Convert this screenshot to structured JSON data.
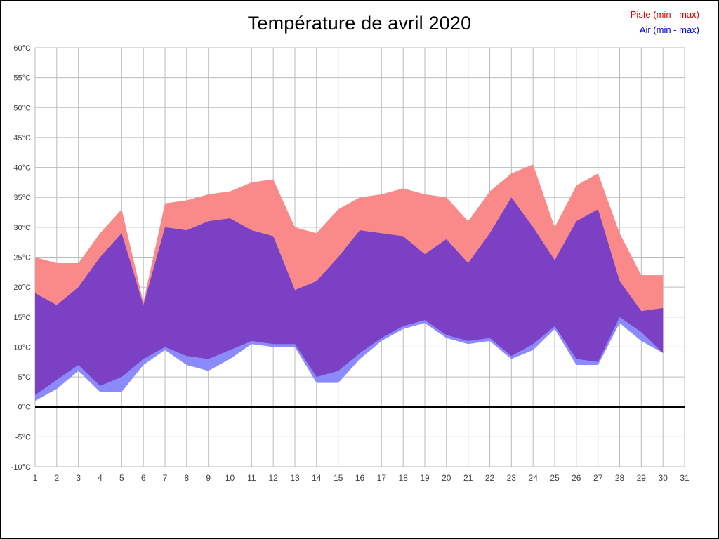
{
  "title": "Température de avril 2020",
  "legend": [
    {
      "label": "Piste (min - max)",
      "color": "#dd0000"
    },
    {
      "label": "Air (min - max)",
      "color": "#0000cc"
    }
  ],
  "chart_data": {
    "type": "area",
    "subtype": "min-max-range-bands",
    "title": "Température de avril 2020",
    "x": [
      1,
      2,
      3,
      4,
      5,
      6,
      7,
      8,
      9,
      10,
      11,
      12,
      13,
      14,
      15,
      16,
      17,
      18,
      19,
      20,
      21,
      22,
      23,
      24,
      25,
      26,
      27,
      28,
      29,
      30
    ],
    "x_ticks": [
      1,
      2,
      3,
      4,
      5,
      6,
      7,
      8,
      9,
      10,
      11,
      12,
      13,
      14,
      15,
      16,
      17,
      18,
      19,
      20,
      21,
      22,
      23,
      24,
      25,
      26,
      27,
      28,
      29,
      30,
      31
    ],
    "ylim": [
      -10,
      60
    ],
    "y_tick_step": 5,
    "y_tick_suffix": "°C",
    "grid": true,
    "zero_line": true,
    "legend_position": "top-right",
    "series": [
      {
        "name": "Piste max",
        "role": "piste_max",
        "color": "#fa8a8a",
        "values": [
          25,
          24,
          24,
          29,
          33,
          17.5,
          34,
          34.5,
          35.5,
          36,
          37.5,
          38,
          30,
          29,
          33,
          35,
          35.5,
          36.5,
          35.5,
          35,
          31,
          36,
          39,
          40.5,
          30,
          37,
          39,
          29,
          22,
          22
        ]
      },
      {
        "name": "Piste min",
        "role": "piste_min",
        "color": "#fa8a8a",
        "values": [
          2,
          4.5,
          7,
          3.5,
          5,
          8,
          10,
          8.5,
          8,
          9.5,
          11,
          10.5,
          10.5,
          5,
          6,
          9,
          11.5,
          13.5,
          14.5,
          12,
          11,
          11.5,
          8.5,
          10.5,
          13.5,
          8,
          7.5,
          15,
          12.5,
          9
        ]
      },
      {
        "name": "Air max",
        "role": "air_max",
        "color": "#8a8afa",
        "values": [
          19,
          17,
          20,
          25,
          29,
          17,
          30,
          29.5,
          31,
          31.5,
          29.5,
          28.5,
          19.5,
          21,
          25,
          29.5,
          29,
          28.5,
          25.5,
          28,
          24,
          29,
          35,
          30,
          24.5,
          31,
          33,
          21,
          16,
          16.5
        ]
      },
      {
        "name": "Air min",
        "role": "air_min",
        "color": "#8a8afa",
        "values": [
          1,
          3,
          6,
          2.5,
          2.5,
          7,
          9.5,
          7,
          6,
          8,
          10.5,
          10,
          10,
          4,
          4,
          8,
          11,
          13,
          14,
          11.5,
          10.5,
          11,
          8,
          9.5,
          13,
          7,
          7,
          14,
          11,
          9
        ]
      }
    ],
    "colors": {
      "piste_band": "#fa8a8a",
      "air_band": "#8a8afa",
      "overlap_band": "#7b40c4",
      "grid": "#bbbbbb",
      "zero_line": "#000000",
      "tick_label": "#404040"
    }
  }
}
